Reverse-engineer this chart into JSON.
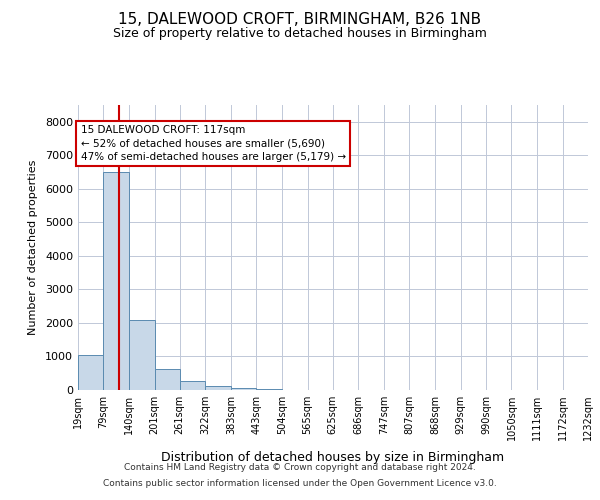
{
  "title_line1": "15, DALEWOOD CROFT, BIRMINGHAM, B26 1NB",
  "title_line2": "Size of property relative to detached houses in Birmingham",
  "xlabel": "Distribution of detached houses by size in Birmingham",
  "ylabel": "Number of detached properties",
  "property_size": 117,
  "property_label": "15 DALEWOOD CROFT: 117sqm",
  "pct_smaller": 52,
  "n_smaller": 5690,
  "pct_larger": 47,
  "n_larger": 5179,
  "footnote1": "Contains HM Land Registry data © Crown copyright and database right 2024.",
  "footnote2": "Contains public sector information licensed under the Open Government Licence v3.0.",
  "bar_color": "#c8d8e8",
  "bar_edge_color": "#5a8ab0",
  "red_line_color": "#cc0000",
  "annotation_box_edge": "#cc0000",
  "grid_color": "#c0c8d8",
  "background_color": "#ffffff",
  "bin_edges": [
    19,
    79,
    140,
    201,
    261,
    322,
    383,
    443,
    504,
    565,
    625,
    686,
    747,
    807,
    868,
    929,
    990,
    1050,
    1111,
    1172,
    1232
  ],
  "bin_labels": [
    "19sqm",
    "79sqm",
    "140sqm",
    "201sqm",
    "261sqm",
    "322sqm",
    "383sqm",
    "443sqm",
    "504sqm",
    "565sqm",
    "625sqm",
    "686sqm",
    "747sqm",
    "807sqm",
    "868sqm",
    "929sqm",
    "990sqm",
    "1050sqm",
    "1111sqm",
    "1172sqm",
    "1232sqm"
  ],
  "counts": [
    1050,
    6500,
    2100,
    620,
    280,
    130,
    70,
    30,
    10,
    5,
    2,
    0,
    0,
    0,
    0,
    0,
    0,
    0,
    0,
    0
  ],
  "ylim": [
    0,
    8500
  ],
  "yticks": [
    0,
    1000,
    2000,
    3000,
    4000,
    5000,
    6000,
    7000,
    8000
  ]
}
